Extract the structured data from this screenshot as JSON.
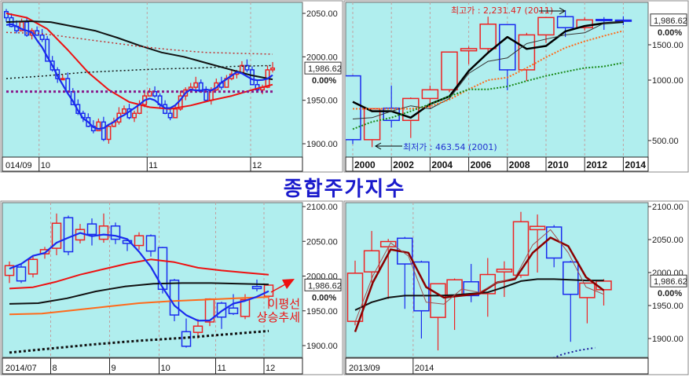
{
  "title": "종합주가지수",
  "colors": {
    "plot_bg": "#b0eeee",
    "up": "#ee2222",
    "down": "#1a2aee",
    "grid": "#c0a0a0"
  },
  "chart_data": [
    {
      "id": "daily",
      "type": "candlestick",
      "price_label": "1,986.62",
      "change_label": "0.00%",
      "last_price": 1986.62,
      "scale": "linear",
      "ylim": [
        1875,
        2063
      ],
      "yticks": [
        {
          "v": 2050,
          "label": "2050.00"
        },
        {
          "v": 2000,
          "label": "2000.00"
        },
        {
          "v": 1950,
          "label": "1950.00"
        },
        {
          "v": 1900,
          "label": "1900.00"
        }
      ],
      "xticks": [
        {
          "at": -0.5,
          "label": "014/09",
          "edge": true
        },
        {
          "at": 6.4,
          "label": "10"
        },
        {
          "at": 27.5,
          "label": "11"
        },
        {
          "at": 47.7,
          "label": "12"
        }
      ],
      "closes": [
        2045,
        2035,
        2030,
        2040,
        2025,
        2030,
        2025,
        2020,
        1995,
        1985,
        1975,
        1975,
        1960,
        1945,
        1935,
        1930,
        1920,
        1915,
        1925,
        1905,
        1920,
        1925,
        1935,
        1940,
        1930,
        1935,
        1945,
        1955,
        1960,
        1955,
        1945,
        1935,
        1930,
        1940,
        1955,
        1962,
        1965,
        1970,
        1960,
        1950,
        1962,
        1970,
        1965,
        1975,
        1980,
        1982,
        1990,
        1985,
        1968,
        1962,
        1965,
        1985,
        1987
      ],
      "first_open": 2052,
      "ma5": {
        "color": "#1a2aee",
        "width": 2.2
      },
      "lines": [
        {
          "name": "ma20",
          "color": "#ee1111",
          "width": 2,
          "dash": "",
          "values": [
            2050,
            2045,
            2032,
            2008,
            1982,
            1962,
            1948,
            1942,
            1940,
            1944,
            1950,
            1955,
            1962,
            1968
          ]
        },
        {
          "name": "ma60",
          "color": "#111111",
          "width": 2,
          "dash": "",
          "values": [
            2040,
            2041,
            2040,
            2035,
            2030,
            2022,
            2013,
            2005,
            2000,
            1993,
            1986,
            1979,
            1974
          ]
        },
        {
          "name": "ma120",
          "color": "#c03030",
          "width": 1.5,
          "dash": "2,3",
          "values": [
            2028,
            2027,
            2022,
            2017,
            2012,
            2008,
            2005,
            2004,
            2003
          ]
        },
        {
          "name": "ma200",
          "color": "#111111",
          "width": 1.5,
          "dash": "2,3",
          "values": [
            1975,
            1978,
            1982,
            1984,
            1986,
            1987,
            1989,
            1990
          ]
        },
        {
          "name": "support",
          "color": "#8a1a8a",
          "width": 3,
          "dash": "3,3",
          "values": [
            1960,
            1960
          ]
        }
      ]
    },
    {
      "id": "yearly",
      "type": "candlestick",
      "price_label": "1,986.62",
      "change_label": "0.00%",
      "last_price": 1986.62,
      "scale": "log",
      "yticks": [
        {
          "v": 1500,
          "label": "1500.00"
        },
        {
          "v": 1000,
          "label": "1000.00"
        },
        {
          "v": 500,
          "label": "500.00"
        }
      ],
      "xticks": [
        {
          "at": 0,
          "label": "2000"
        },
        {
          "at": 2,
          "label": "2002"
        },
        {
          "at": 4,
          "label": "2004"
        },
        {
          "at": 6,
          "label": "2006"
        },
        {
          "at": 8,
          "label": "2008"
        },
        {
          "at": 10,
          "label": "2010"
        },
        {
          "at": 12,
          "label": "2012"
        },
        {
          "at": 14,
          "label": "2014"
        }
      ],
      "ohlc": [
        [
          1050,
          1060,
          480,
          505
        ],
        [
          505,
          725,
          463.54,
          720
        ],
        [
          725,
          940,
          580,
          630
        ],
        [
          630,
          820,
          515,
          810
        ],
        [
          810,
          940,
          720,
          895
        ],
        [
          895,
          1380,
          870,
          1380
        ],
        [
          1400,
          1470,
          1200,
          1435
        ],
        [
          1435,
          2070,
          1350,
          1900
        ],
        [
          1890,
          1900,
          890,
          1125
        ],
        [
          1125,
          1720,
          990,
          1680
        ],
        [
          1680,
          2050,
          1530,
          2050
        ],
        [
          2070,
          2231.47,
          1640,
          1825
        ],
        [
          1825,
          2050,
          1770,
          1995
        ],
        [
          2005,
          2060,
          1780,
          1990
        ],
        [
          1990,
          2080,
          1880,
          1986.62
        ]
      ],
      "lines": [
        {
          "name": "ma3",
          "color": "#000000",
          "width": 2.5,
          "dash": "",
          "values": [
            780,
            700,
            700,
            650,
            760,
            830,
            1110,
            1370,
            1640,
            1430,
            1480,
            1750,
            1860,
            1920,
            1950
          ]
        },
        {
          "name": "ma5",
          "color": "#333333",
          "width": 1,
          "dash": "",
          "values": [
            640,
            650,
            700,
            745,
            720,
            810,
            1080,
            1240,
            1290,
            1520,
            1600,
            1680,
            1720,
            1920,
            1960
          ]
        },
        {
          "name": "ma10",
          "color": "#ff6a1a",
          "width": 2,
          "dash": "2,2",
          "values": [
            720,
            720,
            720,
            720,
            740,
            800,
            900,
            1000,
            1030,
            1150,
            1300,
            1450,
            1560,
            1660,
            1760
          ]
        },
        {
          "name": "ma20",
          "color": "#1a8a1a",
          "width": 2,
          "dash": "2,2",
          "values": [
            570,
            620,
            650,
            700,
            760,
            830,
            900,
            900,
            930,
            990,
            1050,
            1100,
            1150,
            1170,
            1220
          ]
        }
      ],
      "annotations": {
        "high": "최고가 : 2,231.47 (2011)",
        "low": "최저가 : 463.54 (2001)"
      }
    },
    {
      "id": "weekly",
      "type": "candlestick",
      "price_label": "1,986.62",
      "change_label": "0.00%",
      "last_price": 1986.62,
      "scale": "linear",
      "ylim": [
        1882,
        2108
      ],
      "yticks": [
        {
          "v": 2100,
          "label": "2100.00"
        },
        {
          "v": 2050,
          "label": "2050.00"
        },
        {
          "v": 2000,
          "label": "2000.00"
        },
        {
          "v": 1950,
          "label": "1950.00"
        },
        {
          "v": 1900,
          "label": "1900.00"
        }
      ],
      "xticks": [
        {
          "at": -0.8,
          "label": "2014/07",
          "edge": true
        },
        {
          "at": 3.5,
          "label": "8"
        },
        {
          "at": 8.5,
          "label": "9"
        },
        {
          "at": 12.7,
          "label": "10"
        },
        {
          "at": 17.5,
          "label": "11"
        },
        {
          "at": 21.6,
          "label": "12"
        }
      ],
      "ohlc": [
        [
          2001,
          2021,
          1990,
          2015
        ],
        [
          2013,
          2017,
          1990,
          1993
        ],
        [
          2003,
          2028,
          1998,
          2024
        ],
        [
          2032,
          2042,
          2025,
          2038
        ],
        [
          2040,
          2090,
          2030,
          2076
        ],
        [
          2084,
          2087,
          2030,
          2035
        ],
        [
          2052,
          2075,
          2047,
          2067
        ],
        [
          2075,
          2083,
          2044,
          2060
        ],
        [
          2053,
          2090,
          2048,
          2072
        ],
        [
          2072,
          2077,
          2046,
          2053
        ],
        [
          2051,
          2053,
          2036,
          2047
        ],
        [
          2044,
          2063,
          2038,
          2058
        ],
        [
          2058,
          2060,
          2028,
          2036
        ],
        [
          2041,
          2042,
          1975,
          1981
        ],
        [
          1994,
          1996,
          1935,
          1944
        ],
        [
          1920,
          1939,
          1897,
          1899
        ],
        [
          1919,
          1938,
          1910,
          1928
        ],
        [
          1934,
          1968,
          1928,
          1967
        ],
        [
          1961,
          1963,
          1924,
          1941
        ],
        [
          1954,
          1974,
          1944,
          1946
        ],
        [
          1942,
          1974,
          1938,
          1966
        ],
        [
          1985,
          1995,
          1978,
          1982
        ],
        [
          1971,
          1987,
          1953,
          1987
        ]
      ],
      "ma5": {
        "color": "#1a2aee",
        "width": 2.2
      },
      "lines": [
        {
          "name": "ma20",
          "color": "#ee1111",
          "width": 2,
          "dash": "",
          "values": [
            1982,
            1984,
            1992,
            2002,
            2010,
            2018,
            2024,
            2020,
            2012,
            2008,
            2005,
            2002
          ]
        },
        {
          "name": "ma60",
          "color": "#111111",
          "width": 2,
          "dash": "",
          "values": [
            1960,
            1961,
            1968,
            1978,
            1985,
            1989,
            1990,
            1990,
            1989,
            1988
          ]
        },
        {
          "name": "ma120",
          "color": "#ff6a1a",
          "width": 2,
          "dash": "",
          "values": [
            1945,
            1946,
            1951,
            1956,
            1961,
            1964,
            1966,
            1968,
            1970
          ]
        },
        {
          "name": "ma240",
          "color": "#111111",
          "width": 3,
          "dash": "3,3",
          "values": [
            1890,
            1896,
            1902,
            1907,
            1911,
            1916,
            1921
          ]
        }
      ],
      "annotations": {
        "trend": [
          "이평선",
          "상승추세"
        ]
      }
    },
    {
      "id": "monthly",
      "type": "candlestick",
      "price_label": "1,986.62",
      "change_label": "0.00%",
      "last_price": 1986.62,
      "scale": "linear",
      "ylim": [
        1862,
        2112
      ],
      "yticks": [
        {
          "v": 2100,
          "label": "2100.00"
        },
        {
          "v": 2050,
          "label": "2050.00"
        },
        {
          "v": 2000,
          "label": "2000.00"
        },
        {
          "v": 1950,
          "label": "1950.00"
        },
        {
          "v": 1900,
          "label": "1900.00"
        }
      ],
      "xticks": [
        {
          "at": -0.8,
          "label": "2013/09",
          "edge": true
        },
        {
          "at": 3.5,
          "label": "2014"
        }
      ],
      "ohlc": [
        [
          1926,
          2018,
          1920,
          1999
        ],
        [
          2001,
          2063,
          1985,
          2033
        ],
        [
          2039,
          2051,
          1960,
          2047
        ],
        [
          2052,
          2054,
          1945,
          2013
        ],
        [
          2016,
          2018,
          1900,
          1942
        ],
        [
          1932,
          1983,
          1882,
          1983
        ],
        [
          1965,
          1991,
          1913,
          1989
        ],
        [
          1986,
          2013,
          1955,
          1965
        ],
        [
          1968,
          2022,
          1933,
          1997
        ],
        [
          2001,
          2017,
          1963,
          2005
        ],
        [
          1996,
          2092,
          1992,
          2077
        ],
        [
          2065,
          2088,
          2000,
          2070
        ],
        [
          2069,
          2072,
          2008,
          2022
        ],
        [
          2016,
          2018,
          1895,
          1967
        ],
        [
          1962,
          1984,
          1923,
          1984
        ],
        [
          1974,
          1990,
          1950,
          1987
        ]
      ],
      "lines": [
        {
          "name": "ma12",
          "color": "#111111",
          "width": 2,
          "dash": "",
          "values": [
            1943,
            1955,
            1962,
            1965,
            1965,
            1965,
            1966,
            1968,
            1970,
            1978,
            1987,
            1990,
            1990,
            1989,
            1988,
            1988
          ]
        },
        {
          "name": "ma5",
          "color": "#8b0000",
          "width": 2.5,
          "dash": "",
          "values": [
            1910,
            1985,
            2035,
            2030,
            1978,
            1962,
            1965,
            1968,
            1985,
            1990,
            2030,
            2053,
            2040,
            1993,
            1973
          ]
        },
        {
          "name": "ma3",
          "color": "#a05050",
          "width": 1,
          "dash": "",
          "values": [
            1925,
            1995,
            2045,
            2025,
            1955,
            1952,
            1975,
            1970,
            1985,
            1992,
            2042,
            2065,
            2030,
            1978,
            1967
          ]
        },
        {
          "name": "ma60",
          "color": "#1a1a99",
          "width": 2,
          "dash": "2,3",
          "start": 11.5,
          "values": [
            1866,
            1876,
            1882,
            1886
          ]
        }
      ]
    }
  ]
}
